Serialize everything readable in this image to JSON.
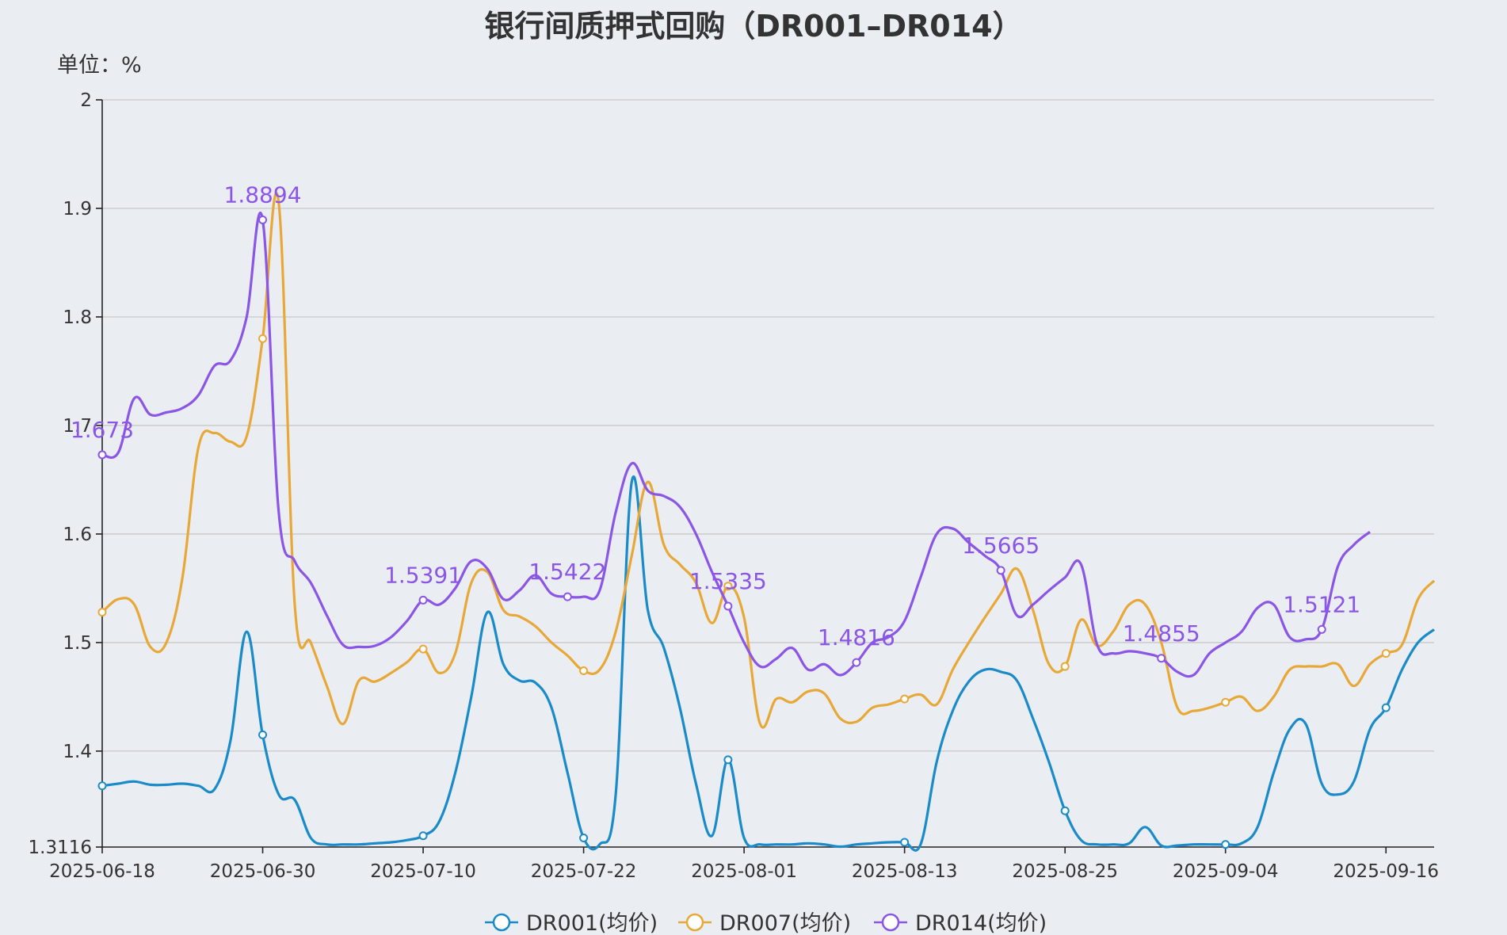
{
  "chart_data": {
    "type": "line",
    "title": "银行间质押式回购（DR001–DR014）",
    "unit_label": "单位：%",
    "ylim": [
      1.3116,
      2
    ],
    "y_ticks": [
      "1.3116",
      "1.4",
      "1.5",
      "1.6",
      "1.7",
      "1.8",
      "1.9",
      "2"
    ],
    "x_ticks": [
      "2025-06-18",
      "2025-06-30",
      "2025-07-10",
      "2025-07-22",
      "2025-08-01",
      "2025-08-13",
      "2025-08-25",
      "2025-09-04",
      "2025-09-16"
    ],
    "grid": true,
    "legend_position": "bottom",
    "series": [
      {
        "name": "DR001(均价)",
        "color": "#1a8bc8",
        "points": [
          [
            0,
            1.368
          ],
          [
            1,
            1.37
          ],
          [
            2,
            1.372
          ],
          [
            3,
            1.369
          ],
          [
            4,
            1.369
          ],
          [
            5,
            1.37
          ],
          [
            6,
            1.368
          ],
          [
            7,
            1.365
          ],
          [
            8,
            1.41
          ],
          [
            9,
            1.51
          ],
          [
            10,
            1.415
          ],
          [
            11,
            1.36
          ],
          [
            12,
            1.355
          ],
          [
            13,
            1.32
          ],
          [
            14,
            1.314
          ],
          [
            15,
            1.314
          ],
          [
            16,
            1.314
          ],
          [
            17,
            1.315
          ],
          [
            18,
            1.316
          ],
          [
            19,
            1.318
          ],
          [
            20,
            1.322
          ],
          [
            21,
            1.335
          ],
          [
            22,
            1.38
          ],
          [
            23,
            1.45
          ],
          [
            24,
            1.528
          ],
          [
            25,
            1.48
          ],
          [
            26,
            1.465
          ],
          [
            27,
            1.463
          ],
          [
            28,
            1.44
          ],
          [
            29,
            1.38
          ],
          [
            30,
            1.32
          ],
          [
            31,
            1.314
          ],
          [
            32,
            1.36
          ],
          [
            33,
            1.648
          ],
          [
            34,
            1.53
          ],
          [
            35,
            1.495
          ],
          [
            36,
            1.44
          ],
          [
            37,
            1.37
          ],
          [
            38,
            1.322
          ],
          [
            39,
            1.392
          ],
          [
            40,
            1.32
          ],
          [
            41,
            1.314
          ],
          [
            42,
            1.314
          ],
          [
            43,
            1.314
          ],
          [
            44,
            1.315
          ],
          [
            45,
            1.314
          ],
          [
            46,
            1.312
          ],
          [
            47,
            1.314
          ],
          [
            48,
            1.315
          ],
          [
            49,
            1.316
          ],
          [
            50,
            1.316
          ],
          [
            51,
            1.314
          ],
          [
            52,
            1.39
          ],
          [
            53,
            1.437
          ],
          [
            54,
            1.464
          ],
          [
            55,
            1.475
          ],
          [
            56,
            1.473
          ],
          [
            57,
            1.465
          ],
          [
            58,
            1.43
          ],
          [
            59,
            1.39
          ],
          [
            60,
            1.345
          ],
          [
            61,
            1.318
          ],
          [
            62,
            1.314
          ],
          [
            63,
            1.314
          ],
          [
            64,
            1.315
          ],
          [
            65,
            1.33
          ],
          [
            66,
            1.313
          ],
          [
            67,
            1.313
          ],
          [
            68,
            1.314
          ],
          [
            69,
            1.314
          ],
          [
            70,
            1.314
          ],
          [
            71,
            1.315
          ],
          [
            72,
            1.33
          ],
          [
            73,
            1.38
          ],
          [
            74,
            1.42
          ],
          [
            75,
            1.425
          ],
          [
            76,
            1.37
          ],
          [
            77,
            1.36
          ],
          [
            78,
            1.372
          ],
          [
            79,
            1.42
          ],
          [
            80,
            1.44
          ],
          [
            81,
            1.475
          ],
          [
            82,
            1.5
          ],
          [
            83,
            1.512
          ]
        ]
      },
      {
        "name": "DR007(均价)",
        "color": "#e8a838",
        "points": [
          [
            0,
            1.528
          ],
          [
            1,
            1.54
          ],
          [
            2,
            1.535
          ],
          [
            3,
            1.496
          ],
          [
            4,
            1.5
          ],
          [
            5,
            1.56
          ],
          [
            6,
            1.68
          ],
          [
            7,
            1.693
          ],
          [
            8,
            1.685
          ],
          [
            9,
            1.69
          ],
          [
            10,
            1.78
          ],
          [
            11,
            1.905
          ],
          [
            12,
            1.535
          ],
          [
            13,
            1.5
          ],
          [
            14,
            1.46
          ],
          [
            15,
            1.425
          ],
          [
            16,
            1.465
          ],
          [
            17,
            1.464
          ],
          [
            18,
            1.472
          ],
          [
            19,
            1.482
          ],
          [
            20,
            1.494
          ],
          [
            21,
            1.472
          ],
          [
            22,
            1.49
          ],
          [
            23,
            1.555
          ],
          [
            24,
            1.565
          ],
          [
            25,
            1.53
          ],
          [
            26,
            1.524
          ],
          [
            27,
            1.515
          ],
          [
            28,
            1.5
          ],
          [
            29,
            1.488
          ],
          [
            30,
            1.474
          ],
          [
            31,
            1.475
          ],
          [
            32,
            1.51
          ],
          [
            33,
            1.58
          ],
          [
            34,
            1.648
          ],
          [
            35,
            1.59
          ],
          [
            36,
            1.572
          ],
          [
            37,
            1.555
          ],
          [
            38,
            1.518
          ],
          [
            39,
            1.552
          ],
          [
            40,
            1.523
          ],
          [
            41,
            1.425
          ],
          [
            42,
            1.448
          ],
          [
            43,
            1.445
          ],
          [
            44,
            1.455
          ],
          [
            45,
            1.453
          ],
          [
            46,
            1.43
          ],
          [
            47,
            1.427
          ],
          [
            48,
            1.44
          ],
          [
            49,
            1.443
          ],
          [
            50,
            1.448
          ],
          [
            51,
            1.452
          ],
          [
            52,
            1.443
          ],
          [
            53,
            1.475
          ],
          [
            54,
            1.5
          ],
          [
            55,
            1.523
          ],
          [
            56,
            1.545
          ],
          [
            57,
            1.568
          ],
          [
            58,
            1.53
          ],
          [
            59,
            1.48
          ],
          [
            60,
            1.478
          ],
          [
            61,
            1.521
          ],
          [
            62,
            1.497
          ],
          [
            63,
            1.51
          ],
          [
            64,
            1.535
          ],
          [
            65,
            1.535
          ],
          [
            66,
            1.5
          ],
          [
            67,
            1.44
          ],
          [
            68,
            1.437
          ],
          [
            69,
            1.44
          ],
          [
            70,
            1.445
          ],
          [
            71,
            1.45
          ],
          [
            72,
            1.437
          ],
          [
            73,
            1.45
          ],
          [
            74,
            1.475
          ],
          [
            75,
            1.478
          ],
          [
            76,
            1.478
          ],
          [
            77,
            1.48
          ],
          [
            78,
            1.46
          ],
          [
            79,
            1.48
          ],
          [
            80,
            1.49
          ],
          [
            81,
            1.498
          ],
          [
            82,
            1.54
          ],
          [
            83,
            1.557
          ]
        ]
      },
      {
        "name": "DR014(均价)",
        "color": "#8b55e6",
        "points": [
          [
            0,
            1.673
          ],
          [
            1,
            1.675
          ],
          [
            2,
            1.725
          ],
          [
            3,
            1.71
          ],
          [
            4,
            1.712
          ],
          [
            5,
            1.716
          ],
          [
            6,
            1.728
          ],
          [
            7,
            1.755
          ],
          [
            8,
            1.76
          ],
          [
            9,
            1.8
          ],
          [
            10,
            1.8894
          ],
          [
            11,
            1.62
          ],
          [
            12,
            1.575
          ],
          [
            13,
            1.555
          ],
          [
            14,
            1.525
          ],
          [
            15,
            1.498
          ],
          [
            16,
            1.496
          ],
          [
            17,
            1.497
          ],
          [
            18,
            1.505
          ],
          [
            19,
            1.52
          ],
          [
            20,
            1.5391
          ],
          [
            21,
            1.535
          ],
          [
            22,
            1.55
          ],
          [
            23,
            1.575
          ],
          [
            24,
            1.568
          ],
          [
            25,
            1.54
          ],
          [
            26,
            1.548
          ],
          [
            27,
            1.562
          ],
          [
            28,
            1.545
          ],
          [
            29,
            1.5422
          ],
          [
            30,
            1.5422
          ],
          [
            31,
            1.548
          ],
          [
            32,
            1.62
          ],
          [
            33,
            1.665
          ],
          [
            34,
            1.64
          ],
          [
            35,
            1.635
          ],
          [
            36,
            1.625
          ],
          [
            37,
            1.6
          ],
          [
            38,
            1.565
          ],
          [
            39,
            1.5335
          ],
          [
            40,
            1.5
          ],
          [
            41,
            1.478
          ],
          [
            42,
            1.485
          ],
          [
            43,
            1.495
          ],
          [
            44,
            1.475
          ],
          [
            45,
            1.48
          ],
          [
            46,
            1.47
          ],
          [
            47,
            1.4816
          ],
          [
            48,
            1.5
          ],
          [
            49,
            1.505
          ],
          [
            50,
            1.52
          ],
          [
            51,
            1.56
          ],
          [
            52,
            1.6
          ],
          [
            53,
            1.605
          ],
          [
            54,
            1.592
          ],
          [
            55,
            1.58
          ],
          [
            56,
            1.5665
          ],
          [
            57,
            1.525
          ],
          [
            58,
            1.535
          ],
          [
            59,
            1.548
          ],
          [
            60,
            1.56
          ],
          [
            61,
            1.572
          ],
          [
            62,
            1.498
          ],
          [
            63,
            1.49
          ],
          [
            64,
            1.492
          ],
          [
            65,
            1.49
          ],
          [
            66,
            1.4855
          ],
          [
            67,
            1.473
          ],
          [
            68,
            1.47
          ],
          [
            69,
            1.49
          ],
          [
            70,
            1.5
          ],
          [
            71,
            1.51
          ],
          [
            72,
            1.532
          ],
          [
            73,
            1.535
          ],
          [
            74,
            1.505
          ],
          [
            75,
            1.503
          ],
          [
            76,
            1.5121
          ],
          [
            77,
            1.57
          ],
          [
            78,
            1.59
          ],
          [
            79,
            1.602
          ]
        ]
      }
    ],
    "x_index_range": [
      0,
      83
    ]
  }
}
